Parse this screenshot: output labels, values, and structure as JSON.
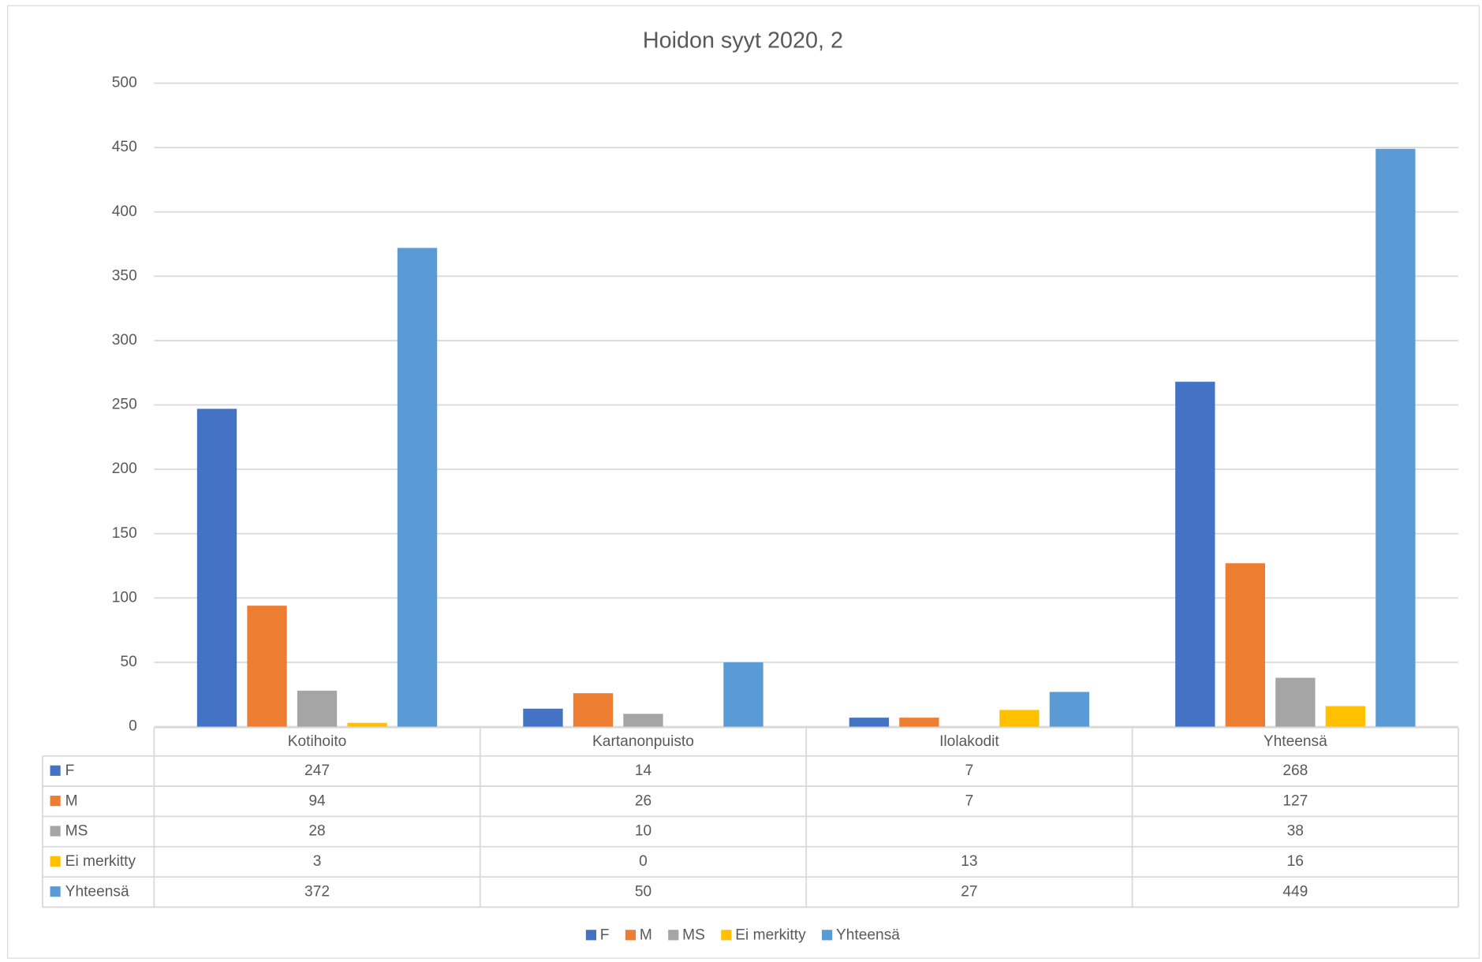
{
  "chart_data": {
    "type": "bar",
    "title": "Hoidon syyt 2020, 2",
    "categories": [
      "Kotihoito",
      "Kartanonpuisto",
      "Ilolakodit",
      "Yhteensä"
    ],
    "series": [
      {
        "name": "F",
        "color": "#4472c4",
        "values": [
          247,
          14,
          7,
          268
        ]
      },
      {
        "name": "M",
        "color": "#ed7d31",
        "values": [
          94,
          26,
          7,
          127
        ]
      },
      {
        "name": "MS",
        "color": "#a5a5a5",
        "values": [
          28,
          10,
          null,
          38
        ]
      },
      {
        "name": "Ei merkitty",
        "color": "#ffc000",
        "values": [
          3,
          0,
          13,
          16
        ]
      },
      {
        "name": "Yhteensä",
        "color": "#5b9bd5",
        "values": [
          372,
          50,
          27,
          449
        ]
      }
    ],
    "ylim": [
      0,
      500
    ],
    "yticks": [
      0,
      50,
      100,
      150,
      200,
      250,
      300,
      350,
      400,
      450,
      500
    ],
    "grid": true,
    "data_table": true,
    "legend": "bottom"
  }
}
